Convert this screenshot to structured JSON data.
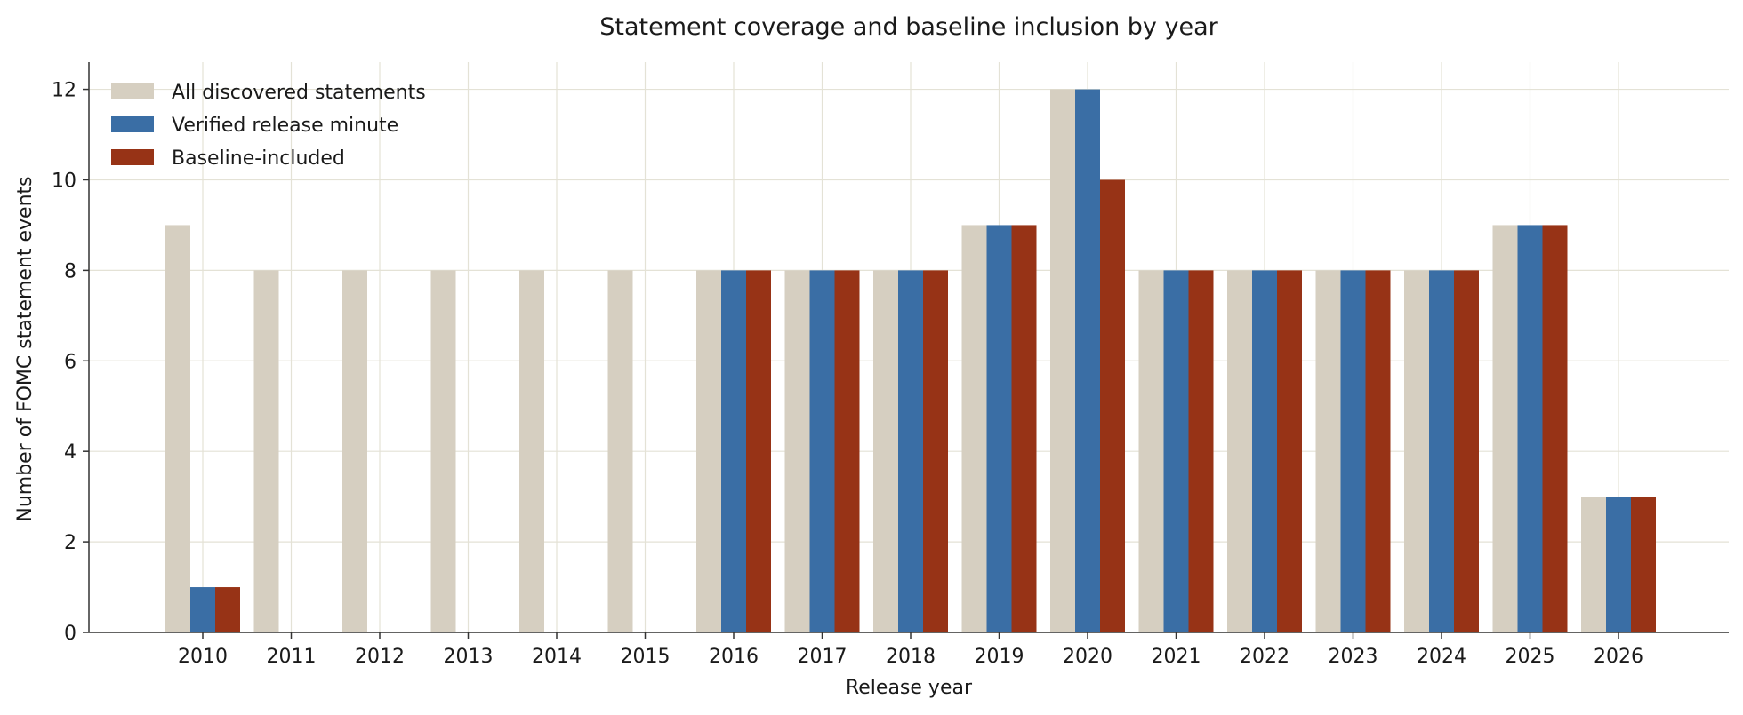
{
  "chart_data": {
    "type": "bar",
    "title": "Statement coverage and baseline inclusion by year",
    "xlabel": "Release year",
    "ylabel": "Number of FOMC statement events",
    "categories": [
      "2010",
      "2011",
      "2012",
      "2013",
      "2014",
      "2015",
      "2016",
      "2017",
      "2018",
      "2019",
      "2020",
      "2021",
      "2022",
      "2023",
      "2024",
      "2025",
      "2026"
    ],
    "series": [
      {
        "name": "All discovered statements",
        "color": "#d6cfc1",
        "values": [
          9,
          8,
          8,
          8,
          8,
          8,
          8,
          8,
          8,
          9,
          12,
          8,
          8,
          8,
          8,
          9,
          3
        ]
      },
      {
        "name": "Verified release minute",
        "color": "#3a6ea5",
        "values": [
          1,
          0,
          0,
          0,
          0,
          0,
          8,
          8,
          8,
          9,
          12,
          8,
          8,
          8,
          8,
          9,
          3
        ]
      },
      {
        "name": "Baseline-included",
        "color": "#973316",
        "values": [
          1,
          0,
          0,
          0,
          0,
          0,
          8,
          8,
          8,
          9,
          10,
          8,
          8,
          8,
          8,
          9,
          3
        ]
      }
    ],
    "ylim": [
      0,
      12.6
    ],
    "yticks": [
      0,
      2,
      4,
      6,
      8,
      10,
      12
    ],
    "grid": true,
    "grid_color": "#e4e2d6",
    "legend_position": "top-left"
  }
}
